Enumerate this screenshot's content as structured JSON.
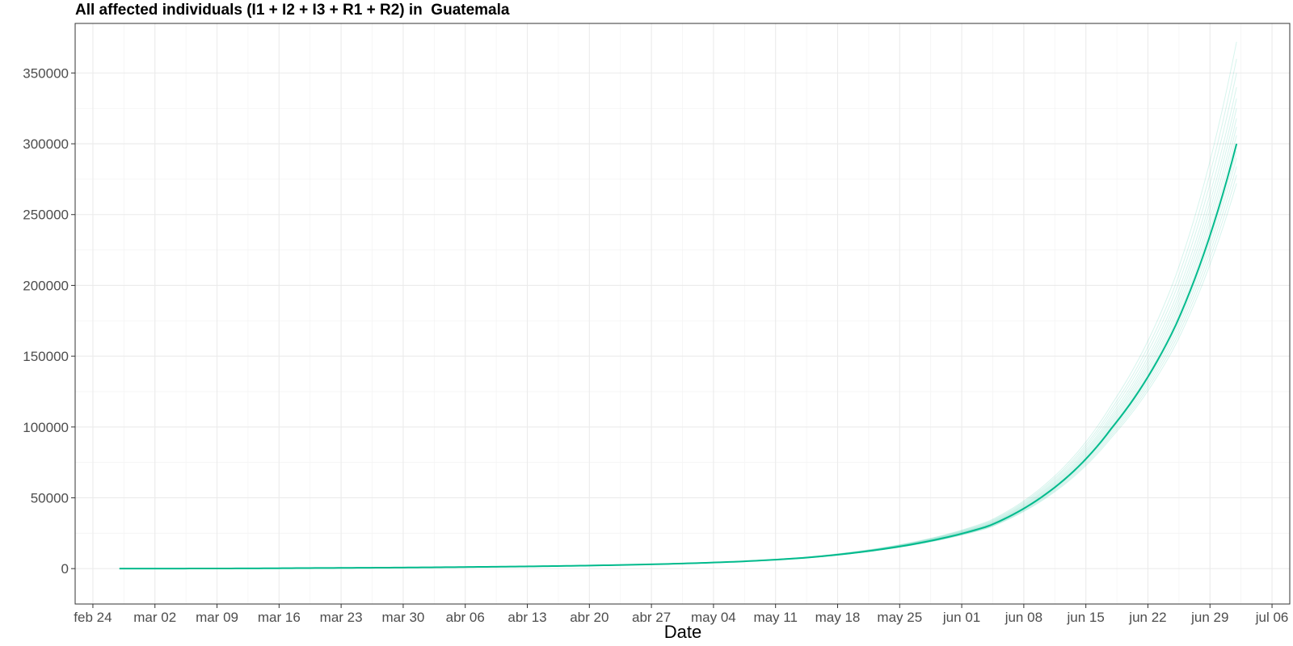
{
  "chart_data": {
    "type": "line",
    "title": "All affected individuals (I1 + I2 + I3 + R1 + R2) in  Guatemala",
    "xlabel": "Date",
    "ylabel": "",
    "x_range": [
      "2020-02-22",
      "2020-07-08"
    ],
    "ylim": [
      -25000,
      385000
    ],
    "x_ticks": [
      "2020-02-24",
      "2020-03-02",
      "2020-03-09",
      "2020-03-16",
      "2020-03-23",
      "2020-03-30",
      "2020-04-06",
      "2020-04-13",
      "2020-04-20",
      "2020-04-27",
      "2020-05-04",
      "2020-05-11",
      "2020-05-18",
      "2020-05-25",
      "2020-06-01",
      "2020-06-08",
      "2020-06-15",
      "2020-06-22",
      "2020-06-29",
      "2020-07-06"
    ],
    "x_tick_labels": [
      "feb 24",
      "mar 02",
      "mar 09",
      "mar 16",
      "mar 23",
      "mar 30",
      "abr 06",
      "abr 13",
      "abr 20",
      "abr 27",
      "may 04",
      "may 11",
      "may 18",
      "may 25",
      "jun 01",
      "jun 08",
      "jun 15",
      "jun 22",
      "jun 29",
      "jul 06"
    ],
    "y_ticks": [
      0,
      50000,
      100000,
      150000,
      200000,
      250000,
      300000,
      350000
    ],
    "y_tick_labels": [
      "0",
      "50000",
      "100000",
      "150000",
      "200000",
      "250000",
      "300000",
      "350000"
    ],
    "grid": true,
    "legend": "none",
    "line_color": "#00BA8C",
    "main_series": {
      "x": [
        "2020-02-27",
        "2020-03-05",
        "2020-03-12",
        "2020-03-19",
        "2020-03-26",
        "2020-04-02",
        "2020-04-09",
        "2020-04-16",
        "2020-04-23",
        "2020-04-30",
        "2020-05-07",
        "2020-05-14",
        "2020-05-21",
        "2020-05-28",
        "2020-06-04",
        "2020-06-11",
        "2020-06-18",
        "2020-06-25",
        "2020-07-02"
      ],
      "values": [
        0,
        50,
        150,
        400,
        600,
        900,
        1300,
        1800,
        2500,
        3500,
        5000,
        7500,
        12000,
        19000,
        30000,
        55000,
        100000,
        170000,
        300000
      ]
    },
    "ensemble_final_values": [
      272000,
      278000,
      284000,
      290000,
      295000,
      300000,
      306000,
      312000,
      318000,
      325000,
      332000,
      340000,
      350000,
      360000,
      372000
    ]
  }
}
